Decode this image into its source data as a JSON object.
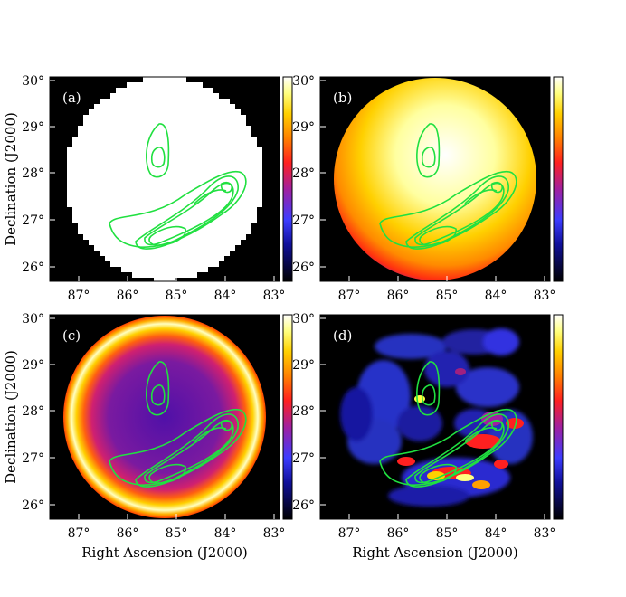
{
  "figure": {
    "xlabel": "Right Ascension (J2000)",
    "ylabel": "Declination (J2000)",
    "x_ticks": [
      "87°",
      "86°",
      "85°",
      "84°",
      "83°"
    ],
    "y_ticks": [
      "30°",
      "29°",
      "28°",
      "27°",
      "26°"
    ],
    "colormap": [
      "#000000",
      "#1010a0",
      "#4040ff",
      "#a020a0",
      "#ff2020",
      "#ff8000",
      "#ffd000",
      "#ffff80",
      "#ffffff"
    ]
  },
  "panels": [
    {
      "label": "(a)",
      "map": "uniform"
    },
    {
      "label": "(b)",
      "map": "smooth"
    },
    {
      "label": "(c)",
      "map": "ring"
    },
    {
      "label": "(d)",
      "map": "clumpy"
    }
  ]
}
